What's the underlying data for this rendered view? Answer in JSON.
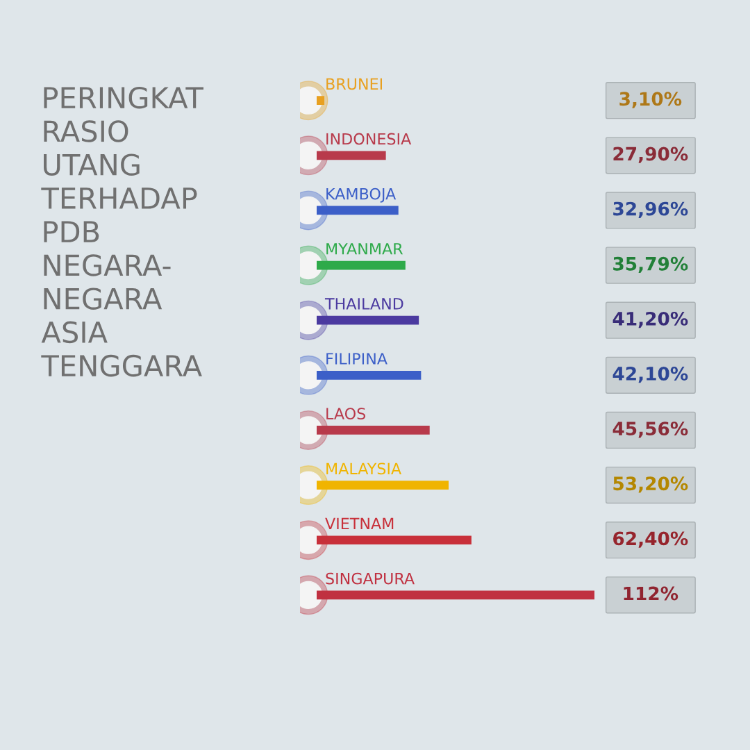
{
  "chart_data": {
    "type": "bar",
    "orientation": "horizontal",
    "title": "PERINGKAT\nRASIO\nUTANG\nTERHADAP\nPDB\nNEGARA-\nNEGARA\nASIA\nTENGGARA",
    "categories": [
      "BRUNEI",
      "INDONESIA",
      "KAMBOJA",
      "MYANMAR",
      "THAILAND",
      "FILIPINA",
      "LAOS",
      "MALAYSIA",
      "VIETNAM",
      "SINGAPURA"
    ],
    "values": [
      3.1,
      27.9,
      32.96,
      35.79,
      41.2,
      42.1,
      45.56,
      53.2,
      62.4,
      112
    ],
    "colors": [
      "#e8a020",
      "#b83a4b",
      "#3c5fc8",
      "#2eaa4a",
      "#4b3aa0",
      "#3c5fc8",
      "#b83a4b",
      "#f0b400",
      "#c8303a",
      "#c03040"
    ],
    "value_labels": [
      "3,10%",
      "27,90%",
      "32,96%",
      "35,79%",
      "41,20%",
      "42,10%",
      "45,56%",
      "53,20%",
      "62,40%",
      "112%"
    ]
  }
}
